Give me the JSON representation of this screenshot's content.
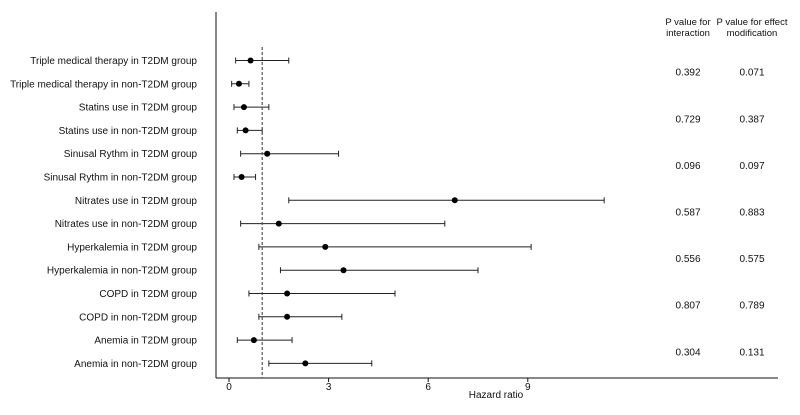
{
  "chart_data": {
    "type": "forest",
    "xlabel": "Hazard ratio",
    "xlim": [
      -0.4,
      16.4
    ],
    "xticks": [
      0,
      3,
      6,
      9
    ],
    "reference_line": 1,
    "rows": [
      {
        "label": "Triple medical therapy in T2DM group",
        "hr": 0.65,
        "lo": 0.2,
        "hi": 1.8
      },
      {
        "label": "Triple medical therapy in non-T2DM group",
        "hr": 0.3,
        "lo": 0.08,
        "hi": 0.6
      },
      {
        "label": "Statins use in T2DM group",
        "hr": 0.45,
        "lo": 0.15,
        "hi": 1.2
      },
      {
        "label": "Statins use in non-T2DM group",
        "hr": 0.5,
        "lo": 0.25,
        "hi": 1.0
      },
      {
        "label": "Sinusal Rythm in T2DM group",
        "hr": 1.15,
        "lo": 0.35,
        "hi": 3.3
      },
      {
        "label": "Sinusal Rythm in non-T2DM group",
        "hr": 0.38,
        "lo": 0.15,
        "hi": 0.8
      },
      {
        "label": "Nitrates use in T2DM group",
        "hr": 6.8,
        "lo": 1.8,
        "hi": 11.3
      },
      {
        "label": "Nitrates use in non-T2DM group",
        "hr": 1.5,
        "lo": 0.35,
        "hi": 6.5
      },
      {
        "label": "Hyperkalemia in T2DM group",
        "hr": 2.9,
        "lo": 0.9,
        "hi": 9.1
      },
      {
        "label": "Hyperkalemia in non-T2DM group",
        "hr": 3.45,
        "lo": 1.55,
        "hi": 7.5
      },
      {
        "label": "COPD in T2DM group",
        "hr": 1.75,
        "lo": 0.6,
        "hi": 5.0
      },
      {
        "label": "COPD in non-T2DM group",
        "hr": 1.75,
        "lo": 0.9,
        "hi": 3.4
      },
      {
        "label": "Anemia in T2DM group",
        "hr": 0.75,
        "lo": 0.25,
        "hi": 1.9
      },
      {
        "label": "Anemia in non-T2DM group",
        "hr": 2.3,
        "lo": 1.2,
        "hi": 4.3
      }
    ],
    "columns": [
      {
        "header": [
          "P value for",
          "interaction"
        ],
        "values": [
          "0.392",
          "0.729",
          "0.096",
          "0.587",
          "0.556",
          "0.807",
          "0.304"
        ]
      },
      {
        "header": [
          "P value for effect",
          "modification"
        ],
        "values": [
          "0.071",
          "0.387",
          "0.097",
          "0.883",
          "0.575",
          "0.789",
          "0.131"
        ]
      }
    ]
  }
}
